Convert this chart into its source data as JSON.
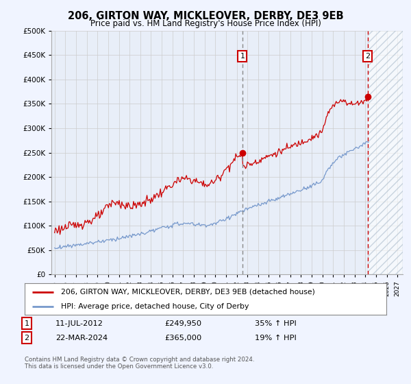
{
  "title": "206, GIRTON WAY, MICKLEOVER, DERBY, DE3 9EB",
  "subtitle": "Price paid vs. HM Land Registry's House Price Index (HPI)",
  "legend_line1": "206, GIRTON WAY, MICKLEOVER, DERBY, DE3 9EB (detached house)",
  "legend_line2": "HPI: Average price, detached house, City of Derby",
  "sale1_label": "1",
  "sale1_date": "11-JUL-2012",
  "sale1_price": "£249,950",
  "sale1_hpi": "35% ↑ HPI",
  "sale2_label": "2",
  "sale2_date": "22-MAR-2024",
  "sale2_price": "£365,000",
  "sale2_hpi": "19% ↑ HPI",
  "footnote": "Contains HM Land Registry data © Crown copyright and database right 2024.\nThis data is licensed under the Open Government Licence v3.0.",
  "red_line_color": "#cc0000",
  "blue_line_color": "#7799cc",
  "vline1_color": "#888888",
  "vline2_color": "#cc0000",
  "background_color": "#f0f4ff",
  "plot_bg_color": "#e8eef8",
  "ylim": [
    0,
    500000
  ],
  "yticks": [
    0,
    50000,
    100000,
    150000,
    200000,
    250000,
    300000,
    350000,
    400000,
    450000,
    500000
  ],
  "xstart_year": 1995,
  "xend_year": 2027,
  "sale1_year": 2012.53,
  "sale2_year": 2024.22,
  "sale1_price_val": 249950,
  "sale2_price_val": 365000
}
